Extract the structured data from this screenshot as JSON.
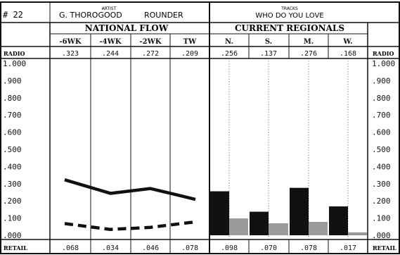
{
  "header": {
    "rank": "# 22",
    "artist_label": "ARTIST",
    "artist": "G. THOROGOOD",
    "label": "ROUNDER",
    "tracks_label": "TRACKS",
    "track": "WHO DO YOU LOVE"
  },
  "sections": {
    "national": "NATIONAL FLOW",
    "regional": "CURRENT REGIONALS"
  },
  "row_labels": {
    "radio": "RADIO",
    "retail": "RETAIL"
  },
  "colors": {
    "radio": "#111111",
    "retail": "#9a9a9a",
    "retail_line": "#111111"
  },
  "chart_data": [
    {
      "type": "line",
      "title": "NATIONAL FLOW",
      "categories": [
        "-6WK",
        "-4WK",
        "-2WK",
        "TW"
      ],
      "series": [
        {
          "name": "RADIO",
          "values": [
            0.323,
            0.244,
            0.272,
            0.209
          ]
        },
        {
          "name": "RETAIL",
          "values": [
            0.068,
            0.034,
            0.046,
            0.078
          ]
        }
      ],
      "value_labels": {
        "radio": [
          ".323",
          ".244",
          ".272",
          ".209"
        ],
        "retail": [
          ".068",
          ".034",
          ".046",
          ".078"
        ]
      },
      "ylim": [
        0,
        1.0
      ],
      "yticks": [
        "1.000",
        ".900",
        ".800",
        ".700",
        ".600",
        ".500",
        ".400",
        ".300",
        ".200",
        ".100",
        ".000"
      ],
      "grid": false
    },
    {
      "type": "bar",
      "title": "CURRENT REGIONALS",
      "categories": [
        "N.",
        "S.",
        "M.",
        "W."
      ],
      "series": [
        {
          "name": "RADIO",
          "values": [
            0.256,
            0.137,
            0.276,
            0.168
          ]
        },
        {
          "name": "RETAIL",
          "values": [
            0.098,
            0.07,
            0.078,
            0.017
          ]
        }
      ],
      "value_labels": {
        "radio": [
          ".256",
          ".137",
          ".276",
          ".168"
        ],
        "retail": [
          ".098",
          ".070",
          ".078",
          ".017"
        ]
      },
      "ylim": [
        0,
        1.0
      ],
      "grid": false
    }
  ]
}
